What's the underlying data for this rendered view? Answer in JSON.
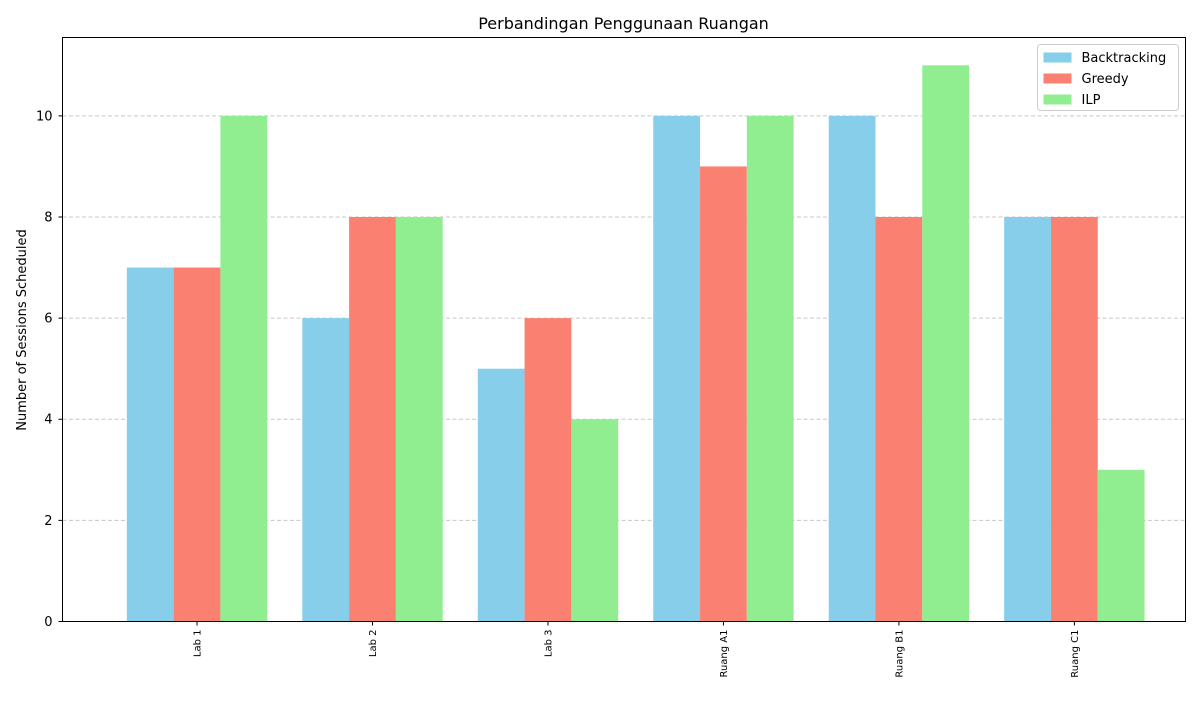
{
  "chart_data": {
    "type": "bar",
    "title": "Perbandingan Penggunaan Ruangan",
    "xlabel": "",
    "ylabel": "Number of Sessions Scheduled",
    "categories": [
      "Lab 1",
      "Lab 2",
      "Lab 3",
      "Ruang A1",
      "Ruang B1",
      "Ruang C1"
    ],
    "series": [
      {
        "name": "Backtracking",
        "color": "#87CEEB",
        "values": [
          7,
          6,
          5,
          10,
          10,
          8
        ]
      },
      {
        "name": "Greedy",
        "color": "#FA8072",
        "values": [
          7,
          8,
          6,
          9,
          8,
          8
        ]
      },
      {
        "name": "ILP",
        "color": "#90EE90",
        "values": [
          10,
          8,
          4,
          10,
          11,
          3
        ]
      }
    ],
    "ylim": [
      0,
      11.55
    ],
    "yticks": [
      "0",
      "2",
      "4",
      "6",
      "8",
      "10"
    ],
    "grid": {
      "axis": "y",
      "style": "dashed"
    },
    "legend_position": "top-right",
    "x_tick_rotation": "vertical"
  }
}
